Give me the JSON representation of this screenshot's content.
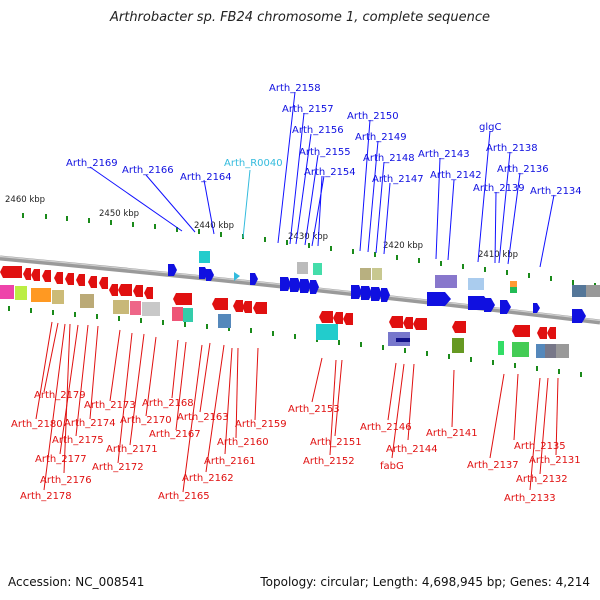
{
  "title": "Arthrobacter sp. FB24 chromosome 1, complete sequence",
  "footer": {
    "accession": "Accession: NC_008541",
    "summary": "Topology: circular; Length: 4,698,945 bp; Genes: 4,214"
  },
  "colors": {
    "forward": "#1010e0",
    "reverse": "#e01010",
    "rna": "#33bbdd",
    "backbone": "#888888",
    "tick": "#1a8a1a"
  },
  "kbp_labels": [
    "2460 kbp",
    "2450 kbp",
    "2440 kbp",
    "2430 kbp",
    "2420 kbp",
    "2410 kbp"
  ],
  "forward_genes": [
    "Arth_2158",
    "Arth_2157",
    "Arth_2156",
    "Arth_2155",
    "Arth_2154",
    "Arth_2150",
    "Arth_2149",
    "Arth_2148",
    "Arth_2147",
    "Arth_2169",
    "Arth_2166",
    "Arth_2164",
    "Arth_R0040",
    "Arth_2143",
    "Arth_2142",
    "glgC",
    "Arth_2138",
    "Arth_2139",
    "Arth_2136",
    "Arth_2134"
  ],
  "reverse_genes": [
    "Arth_2179",
    "Arth_2180",
    "Arth_2174",
    "Arth_2173",
    "Arth_2175",
    "Arth_2177",
    "Arth_2176",
    "Arth_2178",
    "Arth_2171",
    "Arth_2170",
    "Arth_2172",
    "Arth_2168",
    "Arth_2167",
    "Arth_2163",
    "Arth_2160",
    "Arth_2159",
    "Arth_2161",
    "Arth_2162",
    "Arth_2165",
    "Arth_2153",
    "Arth_2151",
    "Arth_2152",
    "Arth_2146",
    "Arth_2144",
    "fabG",
    "Arth_2141",
    "Arth_2135",
    "Arth_2137",
    "Arth_2131",
    "Arth_2132",
    "Arth_2133"
  ]
}
